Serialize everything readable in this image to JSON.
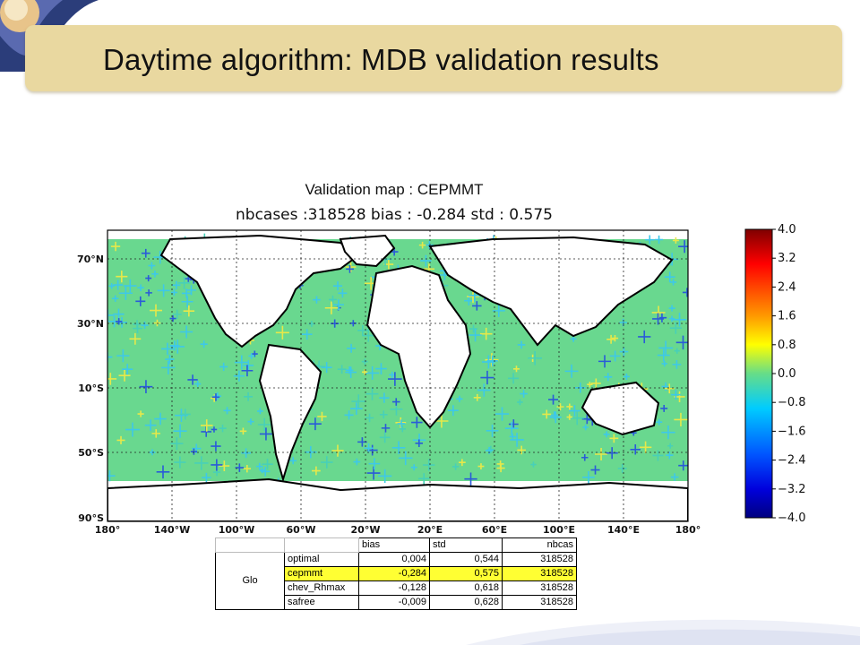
{
  "slide": {
    "title": "Daytime algorithm: MDB validation results"
  },
  "map": {
    "caption": "Validation map : CEPMMT",
    "stats_line": "nbcases :318528 bias : -0.284 std : 0.575",
    "lat_labels": [
      "70°N",
      "30°N",
      "10°S",
      "50°S",
      "90°S"
    ],
    "lon_labels": [
      "180°",
      "140°W",
      "100°W",
      "60°W",
      "20°W",
      "20°E",
      "60°E",
      "100°E",
      "140°E",
      "180°"
    ]
  },
  "colorbar": {
    "ticks": [
      "4.0",
      "3.2",
      "2.4",
      "1.6",
      "0.8",
      "0.0",
      "−0.8",
      "−1.6",
      "−2.4",
      "−3.2",
      "−4.0"
    ],
    "min": -4.0,
    "max": 4.0
  },
  "table": {
    "headers": [
      "bias",
      "std",
      "nbcas"
    ],
    "region": "Glo",
    "rows": [
      {
        "name": "optimal",
        "bias": "0,004",
        "std": "0,544",
        "nbcas": "318528",
        "highlight": false
      },
      {
        "name": "cepmmt",
        "bias": "-0,284",
        "std": "0,575",
        "nbcas": "318528",
        "highlight": true
      },
      {
        "name": "chev_Rhmax",
        "bias": "-0,128",
        "std": "0,618",
        "nbcas": "318528",
        "highlight": false
      },
      {
        "name": "safree",
        "bias": "-0,009",
        "std": "0,628",
        "nbcas": "318528",
        "highlight": false
      }
    ]
  },
  "colors": {
    "ocean_base": "#69d88f",
    "cyan": "#3ec8e8",
    "blue": "#2a5bd8",
    "yellow": "#e6e84a",
    "highlight": "#ffff33"
  }
}
